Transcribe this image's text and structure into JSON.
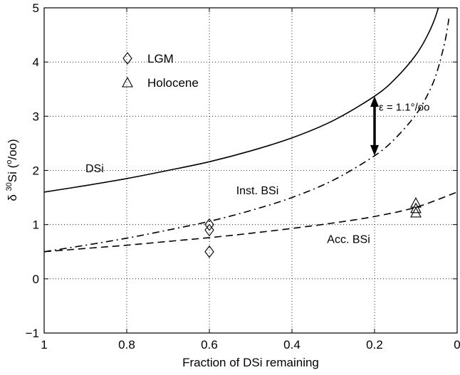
{
  "chart_data": {
    "type": "line",
    "xlabel": "Fraction of DSi remaining",
    "ylabel": {
      "prefix": "δ ",
      "superscript": "30",
      "main": "Si (",
      "superscript2": "o",
      "suffix": "/oo)"
    },
    "xlim": [
      1,
      0
    ],
    "ylim": [
      -1,
      5
    ],
    "x_reversed": true,
    "x_ticks": [
      1,
      0.8,
      0.6,
      0.4,
      0.2,
      0
    ],
    "x_tick_labels": [
      "1",
      "0.8",
      "0.6",
      "0.4",
      "0.2",
      "0"
    ],
    "y_ticks": [
      -1,
      0,
      1,
      2,
      3,
      4,
      5
    ],
    "y_tick_labels": [
      "−1",
      "0",
      "1",
      "2",
      "3",
      "4",
      "5"
    ],
    "grid": true,
    "legend_placement": "upper-left",
    "series": [
      {
        "name": "DSi",
        "kind": "curve",
        "style": "solid",
        "x": [
          1.0,
          0.9,
          0.8,
          0.7,
          0.6,
          0.5,
          0.4,
          0.3,
          0.2,
          0.15,
          0.1,
          0.07,
          0.05,
          0.03,
          0.02
        ],
        "y": [
          1.6,
          1.72,
          1.85,
          2.0,
          2.16,
          2.36,
          2.6,
          2.92,
          3.37,
          3.69,
          4.13,
          4.52,
          4.89,
          5.46,
          5.9
        ]
      },
      {
        "name": "Inst. BSi",
        "kind": "curve",
        "style": "dashdot",
        "x": [
          1.0,
          0.9,
          0.8,
          0.7,
          0.6,
          0.5,
          0.4,
          0.3,
          0.2,
          0.15,
          0.1,
          0.07,
          0.05,
          0.03,
          0.02
        ],
        "y": [
          0.5,
          0.62,
          0.75,
          0.9,
          1.06,
          1.26,
          1.5,
          1.82,
          2.27,
          2.59,
          3.03,
          3.42,
          3.79,
          4.36,
          4.8
        ]
      },
      {
        "name": "Acc. BSi",
        "kind": "curve",
        "style": "dashed",
        "x": [
          1.0,
          0.9,
          0.8,
          0.7,
          0.6,
          0.5,
          0.4,
          0.3,
          0.2,
          0.1,
          0.0
        ],
        "y": [
          0.5,
          0.56,
          0.62,
          0.69,
          0.76,
          0.84,
          0.93,
          1.03,
          1.15,
          1.32,
          1.6
        ]
      },
      {
        "name": "LGM",
        "kind": "markers",
        "marker": "diamond",
        "x": [
          0.6,
          0.6,
          0.6
        ],
        "y": [
          1.0,
          0.9,
          0.5
        ]
      },
      {
        "name": "Holocene",
        "kind": "markers",
        "marker": "triangle",
        "x": [
          0.1,
          0.1,
          0.1
        ],
        "y": [
          1.4,
          1.3,
          1.22
        ]
      }
    ],
    "curve_labels": [
      {
        "series": "DSi",
        "text": "DSi",
        "x": 0.9,
        "y": 1.97
      },
      {
        "series": "Inst. BSi",
        "text": "Inst. BSi",
        "x": 0.535,
        "y": 1.56
      },
      {
        "series": "Acc. BSi",
        "text": "Acc. BSi",
        "x": 0.315,
        "y": 0.66
      }
    ],
    "legend": [
      {
        "marker": "diamond",
        "label": "LGM"
      },
      {
        "marker": "triangle",
        "label": "Holocene"
      }
    ],
    "annotation": {
      "text": "ε = 1.1°/oo",
      "arrow_x": 0.2,
      "arrow_y_from": 2.27,
      "arrow_y_to": 3.37
    }
  }
}
